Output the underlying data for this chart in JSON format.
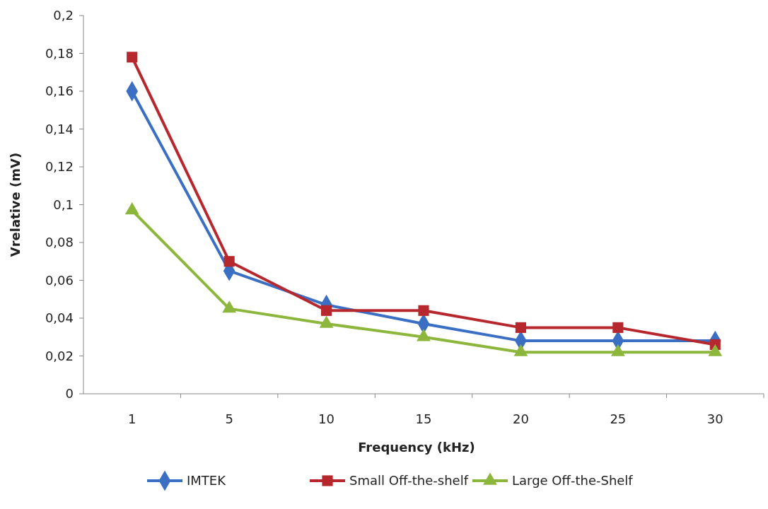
{
  "chart_data": {
    "type": "line",
    "xlabel": "Frequency (kHz)",
    "ylabel": "Vrelative (mV)",
    "categories": [
      "1",
      "5",
      "10",
      "15",
      "20",
      "25",
      "30"
    ],
    "ylim": [
      0,
      0.2
    ],
    "yticks": [
      0,
      {
        "value": 0.02,
        "label": "0,02"
      },
      {
        "value": 0.04,
        "label": "0,04"
      },
      {
        "value": 0.06,
        "label": "0,06"
      },
      {
        "value": 0.08,
        "label": "0,08"
      },
      {
        "value": 0.1,
        "label": "0,1"
      },
      {
        "value": 0.12,
        "label": "0,12"
      },
      {
        "value": 0.14,
        "label": "0,14"
      },
      {
        "value": 0.16,
        "label": "0,16"
      },
      {
        "value": 0.18,
        "label": "0,18"
      },
      {
        "value": 0.2,
        "label": "0,2"
      }
    ],
    "grid": false,
    "legend": "bottom",
    "line_style": "solid",
    "series": [
      {
        "name": "IMTEK",
        "color": "#3a6fc4",
        "marker": "diamond",
        "values": [
          0.16,
          0.065,
          0.047,
          0.037,
          0.028,
          0.028,
          0.028
        ]
      },
      {
        "name": "Small Off-the-shelf",
        "color": "#b7282e",
        "marker": "square",
        "values": [
          0.178,
          0.07,
          0.044,
          0.044,
          0.035,
          0.035,
          0.026
        ]
      },
      {
        "name": "Large Off-the-Shelf",
        "color": "#8db63c",
        "marker": "triangle",
        "values": [
          0.097,
          0.045,
          0.037,
          0.03,
          0.022,
          0.022,
          0.022
        ]
      }
    ]
  }
}
